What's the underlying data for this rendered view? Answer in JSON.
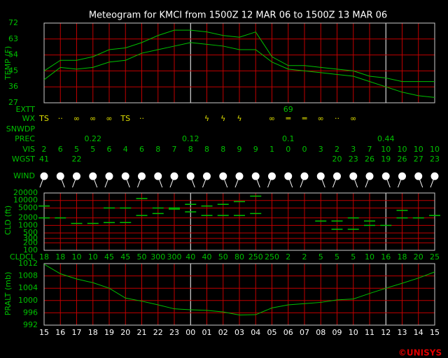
{
  "title": "Meteogram for KMCI from 1500Z 12 MAR 06 to 1500Z 13 MAR 06",
  "credit": "©UNISYS",
  "chart_data": [
    {
      "type": "line",
      "ylabel": "TEMP (F)",
      "ylim": [
        27,
        72
      ],
      "yticks": [
        27,
        36,
        45,
        54,
        63,
        72
      ],
      "grid": true,
      "series": [
        {
          "color": "#00c000",
          "values": [
            45,
            51,
            51,
            53,
            57,
            58,
            61,
            65,
            68,
            68,
            67,
            65,
            64,
            67,
            53,
            48,
            48,
            47,
            46,
            45,
            42,
            41,
            39,
            39,
            39
          ]
        },
        {
          "color": "#00c000",
          "values": [
            40,
            47,
            46,
            47,
            50,
            51,
            55,
            57,
            59,
            61,
            60,
            59,
            57,
            57,
            50,
            46,
            45,
            44,
            43,
            42,
            39,
            36,
            33,
            31,
            30
          ]
        }
      ]
    },
    {
      "type": "dash",
      "ylabel": "CLD (ft)",
      "ylim": [
        100,
        20000
      ],
      "log": true,
      "grid": true,
      "yticks": [
        100,
        200,
        300,
        500,
        1000,
        2000,
        5000,
        10000,
        20000
      ],
      "series": [
        {
          "color": "#00c000",
          "values": [
            2000,
            2000,
            1200,
            1200,
            1300,
            1300,
            2500,
            3000,
            4500,
            3500,
            2500,
            2500,
            2500,
            3000,
            null,
            null,
            null,
            1500,
            700,
            700,
            1000,
            1000,
            2000,
            2000,
            2500
          ]
        },
        {
          "color": "#00c000",
          "values": [
            6000,
            null,
            null,
            null,
            5000,
            5000,
            12000,
            5000,
            5000,
            7000,
            6000,
            7000,
            9000,
            15000,
            null,
            null,
            null,
            null,
            1500,
            2000,
            1500,
            null,
            4000,
            null,
            null
          ]
        }
      ]
    },
    {
      "type": "line",
      "ylabel": "PRALT (mb)",
      "ylim": [
        992,
        1012
      ],
      "yticks": [
        992,
        996,
        1000,
        1004,
        1008,
        1012
      ],
      "grid": true,
      "categories": [
        "15",
        "16",
        "17",
        "18",
        "19",
        "20",
        "21",
        "22",
        "23",
        "00",
        "01",
        "02",
        "03",
        "04",
        "05",
        "06",
        "07",
        "08",
        "09",
        "10",
        "11",
        "12",
        "13",
        "14",
        "15"
      ],
      "series": [
        {
          "color": "#00c000",
          "values": [
            1011.8,
            1008.7,
            1007,
            1005.8,
            1004,
            1000.8,
            999.8,
            998.6,
            997.3,
            997,
            996.8,
            996.3,
            995.3,
            995.4,
            997.6,
            998.6,
            999,
            999.4,
            1000.2,
            1000.5,
            1002.3,
            1004,
            1005.6,
            1007.3,
            1009.3
          ]
        }
      ]
    }
  ],
  "rows": [
    {
      "label": "EXTT",
      "values": [
        null,
        null,
        null,
        null,
        null,
        null,
        null,
        null,
        null,
        null,
        null,
        null,
        null,
        null,
        null,
        69,
        null,
        null,
        null,
        null,
        null,
        null,
        null,
        null,
        null
      ]
    },
    {
      "label": "WX",
      "values": [
        "TS",
        "··",
        "∞",
        "∞",
        "∞",
        "TS",
        "··",
        null,
        null,
        null,
        "ϟ",
        "ϟ",
        "ϟ",
        null,
        "∞",
        "═",
        "═",
        "∞",
        "··",
        "∞",
        null,
        null,
        null,
        null,
        null
      ]
    },
    {
      "label": "SNWDP",
      "values": [
        null,
        null,
        null,
        null,
        null,
        null,
        null,
        null,
        null,
        null,
        null,
        null,
        null,
        null,
        null,
        null,
        null,
        null,
        null,
        null,
        null,
        null,
        null,
        null,
        null
      ]
    },
    {
      "label": "PREC",
      "values": [
        null,
        null,
        null,
        0.22,
        null,
        null,
        null,
        null,
        null,
        0.12,
        null,
        null,
        null,
        null,
        null,
        0.1,
        null,
        null,
        null,
        null,
        null,
        0.44,
        null,
        null,
        null
      ]
    },
    {
      "label": "VIS",
      "values": [
        2,
        6,
        5,
        5,
        6,
        4,
        6,
        8,
        7,
        8,
        8,
        8,
        9,
        9,
        1,
        0,
        0,
        3,
        2,
        3,
        7,
        10,
        10,
        10,
        10
      ]
    },
    {
      "label": "WGST",
      "values": [
        41,
        null,
        22,
        null,
        null,
        null,
        null,
        null,
        null,
        null,
        null,
        null,
        null,
        null,
        null,
        null,
        null,
        null,
        20,
        23,
        26,
        19,
        26,
        27,
        23
      ]
    },
    {
      "label": "WIND",
      "values": [
        null,
        null,
        null,
        null,
        null,
        null,
        null,
        null,
        null,
        null,
        null,
        null,
        null,
        null,
        null,
        null,
        null,
        null,
        null,
        null,
        null,
        null,
        null,
        null,
        null
      ]
    },
    {
      "label": "CLDCL",
      "values": [
        18,
        18,
        10,
        10,
        45,
        45,
        50,
        300,
        300,
        40,
        40,
        50,
        80,
        250,
        250,
        2,
        2,
        5,
        5,
        5,
        10,
        16,
        18,
        20,
        25
      ]
    }
  ]
}
